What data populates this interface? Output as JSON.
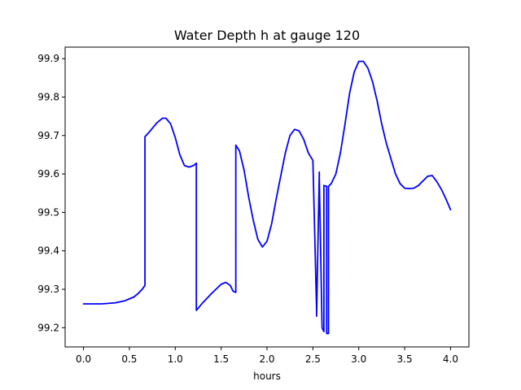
{
  "chart_data": {
    "type": "line",
    "title": "Water Depth h at gauge 120",
    "xlabel": "hours",
    "ylabel": "",
    "xlim": [
      -0.2,
      4.2
    ],
    "ylim": [
      99.15,
      99.93
    ],
    "xticks": [
      0.0,
      0.5,
      1.0,
      1.5,
      2.0,
      2.5,
      3.0,
      3.5,
      4.0
    ],
    "xtick_labels": [
      "0.0",
      "0.5",
      "1.0",
      "1.5",
      "2.0",
      "2.5",
      "3.0",
      "3.5",
      "4.0"
    ],
    "yticks": [
      99.2,
      99.3,
      99.4,
      99.5,
      99.6,
      99.7,
      99.8,
      99.9
    ],
    "ytick_labels": [
      "99.2",
      "99.3",
      "99.4",
      "99.5",
      "99.6",
      "99.7",
      "99.8",
      "99.9"
    ],
    "grid": false,
    "series": [
      {
        "color": "#0000ff",
        "x": [
          0.0,
          0.2,
          0.35,
          0.45,
          0.55,
          0.6,
          0.64,
          0.67,
          0.67,
          0.72,
          0.8,
          0.86,
          0.9,
          0.95,
          1.0,
          1.05,
          1.1,
          1.15,
          1.2,
          1.23,
          1.23,
          1.3,
          1.4,
          1.5,
          1.55,
          1.6,
          1.63,
          1.66,
          1.66,
          1.7,
          1.75,
          1.8,
          1.85,
          1.9,
          1.95,
          2.0,
          2.05,
          2.1,
          2.15,
          2.2,
          2.25,
          2.3,
          2.35,
          2.4,
          2.45,
          2.5,
          2.54,
          2.54,
          2.57,
          2.57,
          2.6,
          2.62,
          2.62,
          2.65,
          2.65,
          2.67,
          2.67,
          2.7,
          2.75,
          2.8,
          2.85,
          2.9,
          2.95,
          3.0,
          3.05,
          3.1,
          3.15,
          3.2,
          3.25,
          3.3,
          3.35,
          3.4,
          3.45,
          3.5,
          3.55,
          3.6,
          3.65,
          3.7,
          3.75,
          3.8,
          3.85,
          3.9,
          3.95,
          4.0
        ],
        "y": [
          99.262,
          99.262,
          99.265,
          99.27,
          99.28,
          99.29,
          99.3,
          99.31,
          99.697,
          99.71,
          99.733,
          99.745,
          99.745,
          99.73,
          99.695,
          99.65,
          99.622,
          99.618,
          99.622,
          99.628,
          99.245,
          99.265,
          99.29,
          99.313,
          99.318,
          99.31,
          99.295,
          99.292,
          99.675,
          99.66,
          99.61,
          99.54,
          99.48,
          99.43,
          99.41,
          99.425,
          99.47,
          99.535,
          99.595,
          99.655,
          99.7,
          99.716,
          99.712,
          99.69,
          99.655,
          99.635,
          99.25,
          99.23,
          99.605,
          99.59,
          99.2,
          99.19,
          99.57,
          99.568,
          99.185,
          99.185,
          99.568,
          99.575,
          99.6,
          99.655,
          99.73,
          99.81,
          99.865,
          99.893,
          99.893,
          99.875,
          99.84,
          99.79,
          99.73,
          99.68,
          99.64,
          99.6,
          99.575,
          99.563,
          99.562,
          99.563,
          99.57,
          99.582,
          99.594,
          99.596,
          99.58,
          99.56,
          99.535,
          99.507
        ]
      }
    ]
  }
}
